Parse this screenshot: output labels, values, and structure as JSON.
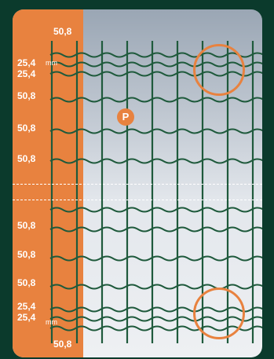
{
  "labels": {
    "top_50_8": "50,8",
    "top_25_4_a": "25,4",
    "top_25_4_b": "25,4",
    "top_mm": "mm",
    "row_50_8_1": "50,8",
    "row_50_8_2": "50,8",
    "row_50_8_3": "50,8",
    "mid_50_8_1": "50,8",
    "mid_50_8_2": "50,8",
    "mid_50_8_3": "50,8",
    "bot_25_4_a": "25,4",
    "bot_25_4_b": "25,4",
    "bot_mm": "mm",
    "bot_50_8": "50,8"
  },
  "badge": "P",
  "colors": {
    "background": "#0b3a2c",
    "accent": "#e8823f",
    "wire": "#1f5a3c"
  }
}
